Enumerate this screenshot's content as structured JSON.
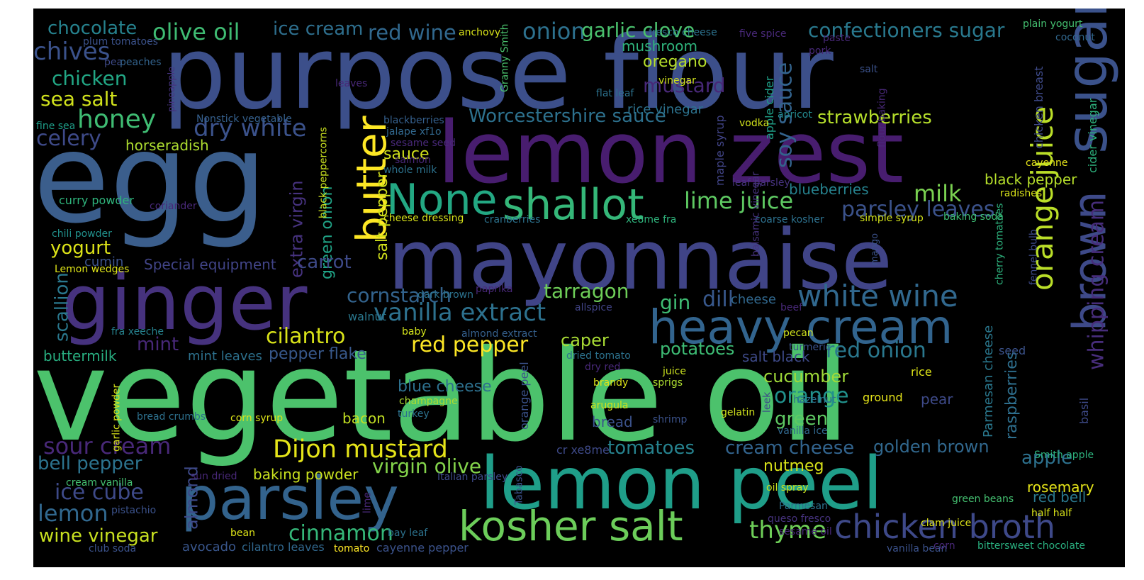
{
  "background_color": "#000000",
  "words": [
    {
      "text": "vegetable oil",
      "color": "#4cc26c"
    },
    {
      "text": "purpose flour",
      "color": "#3c4f8a"
    },
    {
      "text": "egg",
      "color": "#3b5e8c"
    },
    {
      "text": "lemon zest",
      "color": "#481d6f"
    },
    {
      "text": "mayonnaise",
      "color": "#404487"
    },
    {
      "text": "ginger",
      "color": "#46327e"
    },
    {
      "text": "lemon peel",
      "color": "#1f9e89"
    },
    {
      "text": "parsley",
      "color": "#33638d"
    },
    {
      "text": "heavy cream",
      "color": "#32648e"
    },
    {
      "text": "sugar",
      "color": "#3b528b"
    },
    {
      "text": "brown",
      "color": "#3e4a89"
    },
    {
      "text": "None",
      "color": "#23a883"
    },
    {
      "text": "shallot",
      "color": "#35b779"
    },
    {
      "text": "butter",
      "color": "#fde725"
    },
    {
      "text": "kosher salt",
      "color": "#6ccd5a"
    },
    {
      "text": "chicken broth",
      "color": "#3e4989"
    },
    {
      "text": "white wine",
      "color": "#31688e"
    },
    {
      "text": "orange juice",
      "color": "#bade28"
    },
    {
      "text": "vanilla extract",
      "color": "#2d718e"
    },
    {
      "text": "Dijon mustard",
      "color": "#e5e419"
    },
    {
      "text": "olive oil",
      "color": "#3fbc73"
    },
    {
      "text": "onion",
      "color": "#2d718e"
    },
    {
      "text": "garlic clove",
      "color": "#4ac16d"
    },
    {
      "text": "confectioners sugar",
      "color": "#29798e"
    },
    {
      "text": "red wine",
      "color": "#31688e"
    },
    {
      "text": "ice cream",
      "color": "#2e6f8e"
    },
    {
      "text": "chocolate",
      "color": "#26828e"
    },
    {
      "text": "chives",
      "color": "#3b528b"
    },
    {
      "text": "chicken",
      "color": "#22a785"
    },
    {
      "text": "sea salt",
      "color": "#d0e11c"
    },
    {
      "text": "honey",
      "color": "#3fbc73"
    },
    {
      "text": "celery",
      "color": "#3e4a89"
    },
    {
      "text": "dry white",
      "color": "#3b528b"
    },
    {
      "text": "lime juice",
      "color": "#5ec962"
    },
    {
      "text": "milk",
      "color": "#7ad151"
    },
    {
      "text": "parsley leaves",
      "color": "#3b528b"
    },
    {
      "text": "soy sauce",
      "color": "#33638d"
    },
    {
      "text": "Worcestershire sauce",
      "color": "#2d718e"
    },
    {
      "text": "strawberries",
      "color": "#b5de2b"
    },
    {
      "text": "mustard",
      "color": "#482878"
    },
    {
      "text": "oregano",
      "color": "#b5de2b"
    },
    {
      "text": "whipping cream",
      "color": "#472d7b"
    },
    {
      "text": "cornstarch",
      "color": "#33638d"
    },
    {
      "text": "cilantro",
      "color": "#d8e219"
    },
    {
      "text": "red pepper",
      "color": "#fde725"
    },
    {
      "text": "tarragon",
      "color": "#6ece58"
    },
    {
      "text": "gin",
      "color": "#3fbc73"
    },
    {
      "text": "dill",
      "color": "#38588c"
    },
    {
      "text": "red onion",
      "color": "#2a788e"
    },
    {
      "text": "sour cream",
      "color": "#482878"
    },
    {
      "text": "bell pepper",
      "color": "#2c738e"
    },
    {
      "text": "ice cube",
      "color": "#3e4a89"
    },
    {
      "text": "lemon",
      "color": "#31688e"
    },
    {
      "text": "wine vinegar",
      "color": "#c8e020"
    },
    {
      "text": "cinnamon",
      "color": "#35b779"
    },
    {
      "text": "thyme",
      "color": "#6ece58"
    },
    {
      "text": "cream cheese",
      "color": "#32648e"
    },
    {
      "text": "golden brown",
      "color": "#31688e"
    },
    {
      "text": "apple",
      "color": "#2d718e"
    },
    {
      "text": "tomatoes",
      "color": "#26828e"
    },
    {
      "text": "orange",
      "color": "#21918c"
    },
    {
      "text": "green",
      "color": "#5ec962"
    },
    {
      "text": "cucumber",
      "color": "#a0da39"
    },
    {
      "text": "virgin olive",
      "color": "#84d44b"
    },
    {
      "text": "scallion",
      "color": "#2a788e"
    },
    {
      "text": "yogurt",
      "color": "#dde318"
    },
    {
      "text": "almond",
      "color": "#3e4a89"
    },
    {
      "text": "extra virgin",
      "color": "#46327e"
    },
    {
      "text": "green onion",
      "color": "#20a386"
    },
    {
      "text": "salt pepper",
      "color": "#d2e21b"
    },
    {
      "text": "carrot",
      "color": "#3e4a89"
    },
    {
      "text": "mint",
      "color": "#482878"
    },
    {
      "text": "raspberries",
      "color": "#2e6f8e"
    },
    {
      "text": "Parmesan cheese",
      "color": "#2a788e"
    },
    {
      "text": "caper",
      "color": "#a8db34"
    },
    {
      "text": "potatoes",
      "color": "#3dbc74"
    },
    {
      "text": "pepper flake",
      "color": "#38598c"
    },
    {
      "text": "salt black",
      "color": "#3e4a89"
    },
    {
      "text": "baking powder",
      "color": "#cae11f"
    },
    {
      "text": "nutmeg",
      "color": "#d8e219"
    },
    {
      "text": "rosemary",
      "color": "#e5e419"
    },
    {
      "text": "black pepper",
      "color": "#b5de2b"
    },
    {
      "text": "blue cheese",
      "color": "#2d708e"
    },
    {
      "text": "bacon",
      "color": "#c2df23"
    },
    {
      "text": "bread",
      "color": "#3b528b"
    },
    {
      "text": "sauce",
      "color": "#d2e21b"
    },
    {
      "text": "cheese",
      "color": "#31688e"
    },
    {
      "text": "blueberries",
      "color": "#26828e"
    },
    {
      "text": "horseradish",
      "color": "#addc30"
    },
    {
      "text": "buttermilk",
      "color": "#28ae80"
    },
    {
      "text": "Special equipment",
      "color": "#414487"
    },
    {
      "text": "cumin",
      "color": "#3b528b"
    },
    {
      "text": "mushroom",
      "color": "#2fb47c"
    },
    {
      "text": "pear",
      "color": "#3e4a89"
    },
    {
      "text": "avocado",
      "color": "#39568c"
    },
    {
      "text": "red bell",
      "color": "#2a788e"
    },
    {
      "text": "mint leaves",
      "color": "#2d718e"
    },
    {
      "text": "cilantro leaves",
      "color": "#31688e"
    },
    {
      "text": "cayenne pepper",
      "color": "#3b528b"
    },
    {
      "text": "curry powder",
      "color": "#2fb47c"
    },
    {
      "text": "chili powder",
      "color": "#21918c"
    },
    {
      "text": "Lemon wedges",
      "color": "#dde318"
    },
    {
      "text": "coriander",
      "color": "#482878"
    },
    {
      "text": "fine sea",
      "color": "#1f9e89"
    },
    {
      "text": "pineapple",
      "color": "#46327e"
    },
    {
      "text": "Nonstick vegetable",
      "color": "#35608d"
    },
    {
      "text": "plum tomatoes",
      "color": "#3b528b"
    },
    {
      "text": "pea",
      "color": "#3e4a89"
    },
    {
      "text": "peaches",
      "color": "#33638d"
    },
    {
      "text": "leaves",
      "color": "#482878"
    },
    {
      "text": "anchovy",
      "color": "#d8e219"
    },
    {
      "text": "Granny Smith",
      "color": "#4ac16d"
    },
    {
      "text": "fresco cheese",
      "color": "#2c728e"
    },
    {
      "text": "vinegar",
      "color": "#d0e11c"
    },
    {
      "text": "flat leaf",
      "color": "#2c728e"
    },
    {
      "text": "rice vinegar",
      "color": "#2c728e"
    },
    {
      "text": "five spice",
      "color": "#482878"
    },
    {
      "text": "paste",
      "color": "#482878"
    },
    {
      "text": "pork",
      "color": "#482878"
    },
    {
      "text": "salt",
      "color": "#3b528b"
    },
    {
      "text": "apple cider",
      "color": "#1fa188"
    },
    {
      "text": "maple syrup",
      "color": "#414487"
    },
    {
      "text": "vodka",
      "color": "#d2e21b"
    },
    {
      "text": "apricot",
      "color": "#23898e"
    },
    {
      "text": "plain yogurt",
      "color": "#44bf70"
    },
    {
      "text": "coconut",
      "color": "#31688e"
    },
    {
      "text": "chicken breast",
      "color": "#3e4a89"
    },
    {
      "text": "cider vinegar",
      "color": "#2db27d"
    },
    {
      "text": "cayenne",
      "color": "#e5e419"
    },
    {
      "text": "radishes",
      "color": "#d8e219"
    },
    {
      "text": "flour baking",
      "color": "#482878"
    },
    {
      "text": "baking soda",
      "color": "#3dbc74"
    },
    {
      "text": "simple syrup",
      "color": "#d2e21b"
    },
    {
      "text": "coarse kosher",
      "color": "#2d718e"
    },
    {
      "text": "leaf parsley",
      "color": "#46327e"
    },
    {
      "text": "balsamic vinegar",
      "color": "#46327e"
    },
    {
      "text": "blackberries",
      "color": "#35608d"
    },
    {
      "text": "jalape xf1o",
      "color": "#31688e"
    },
    {
      "text": "sesame seed",
      "color": "#482878"
    },
    {
      "text": "salmon",
      "color": "#482878"
    },
    {
      "text": "whole milk",
      "color": "#2c728e"
    },
    {
      "text": "black peppercorns",
      "color": "#cae11f"
    },
    {
      "text": "cheese dressing",
      "color": "#d8e219"
    },
    {
      "text": "cranberries",
      "color": "#2c728e"
    },
    {
      "text": "xe8me fra",
      "color": "#2fb47c"
    },
    {
      "text": "paprika",
      "color": "#482878"
    },
    {
      "text": "dark brown",
      "color": "#2c728e"
    },
    {
      "text": "walnut",
      "color": "#2a788e"
    },
    {
      "text": "allspice",
      "color": "#414487"
    },
    {
      "text": "fra xeeche",
      "color": "#26828e"
    },
    {
      "text": "baby",
      "color": "#d2e21b"
    },
    {
      "text": "almond extract",
      "color": "#35608d"
    },
    {
      "text": "dried tomato",
      "color": "#2c728e"
    },
    {
      "text": "dry red",
      "color": "#482878"
    },
    {
      "text": "champagne",
      "color": "#addc30"
    },
    {
      "text": "turkey",
      "color": "#2c728e"
    },
    {
      "text": "brandy",
      "color": "#dde318"
    },
    {
      "text": "arugula",
      "color": "#d2e21b"
    },
    {
      "text": "sprigs",
      "color": "#addc30"
    },
    {
      "text": "juice",
      "color": "#cae11f"
    },
    {
      "text": "orange peel",
      "color": "#3b528b"
    },
    {
      "text": "garlic powder",
      "color": "#d8e219"
    },
    {
      "text": "bread crumbs",
      "color": "#2d718e"
    },
    {
      "text": "corn syrup",
      "color": "#dde318"
    },
    {
      "text": "shrimp",
      "color": "#3b528b"
    },
    {
      "text": "gelatin",
      "color": "#d0e11c"
    },
    {
      "text": "leek",
      "color": "#3e4a89"
    },
    {
      "text": "hazelnut",
      "color": "#2c728e"
    },
    {
      "text": "ground",
      "color": "#e5e419"
    },
    {
      "text": "vanilla ice",
      "color": "#31688e"
    },
    {
      "text": "turmeric",
      "color": "#3b528b"
    },
    {
      "text": "beef",
      "color": "#482878"
    },
    {
      "text": "pecan",
      "color": "#d0e11c"
    },
    {
      "text": "seed",
      "color": "#3b528b"
    },
    {
      "text": "rice",
      "color": "#dde318"
    },
    {
      "text": "mango",
      "color": "#3b528b"
    },
    {
      "text": "cherry tomatoes",
      "color": "#2db27d"
    },
    {
      "text": "fennel bulb",
      "color": "#3e4a89"
    },
    {
      "text": "basil",
      "color": "#3e4a89"
    },
    {
      "text": "cr xe8me",
      "color": "#3e4a89"
    },
    {
      "text": "Tabasco",
      "color": "#3b528b"
    },
    {
      "text": "Italian parsley",
      "color": "#3e4a89"
    },
    {
      "text": "sun dried",
      "color": "#482878"
    },
    {
      "text": "cream vanilla",
      "color": "#44bf70"
    },
    {
      "text": "pistachio",
      "color": "#3b528b"
    },
    {
      "text": "club soda",
      "color": "#3b528b"
    },
    {
      "text": "bean",
      "color": "#dde318"
    },
    {
      "text": "tomato",
      "color": "#fde725"
    },
    {
      "text": "lime",
      "color": "#482878"
    },
    {
      "text": "bay leaf",
      "color": "#2c728e"
    },
    {
      "text": "oil spray",
      "color": "#cae11f"
    },
    {
      "text": "Parmesan",
      "color": "#2c728e"
    },
    {
      "text": "queso fresco",
      "color": "#46327e"
    },
    {
      "text": "sesame oil",
      "color": "#482878"
    },
    {
      "text": "clam juice",
      "color": "#dde318"
    },
    {
      "text": "green beans",
      "color": "#44bf70"
    },
    {
      "text": "half half",
      "color": "#d8e219"
    },
    {
      "text": "Smith apple",
      "color": "#2db27d"
    },
    {
      "text": "vanilla bean",
      "color": "#3b528b"
    },
    {
      "text": "corn",
      "color": "#482878"
    },
    {
      "text": "bittersweet chocolate",
      "color": "#29af7f"
    }
  ]
}
